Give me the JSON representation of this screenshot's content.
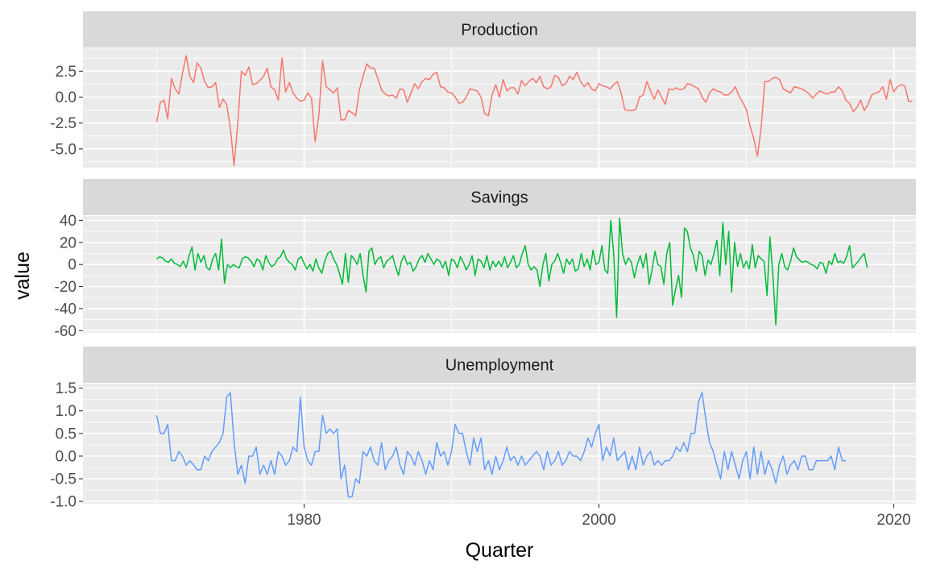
{
  "chart_data": {
    "type": "line",
    "xlabel": "Quarter",
    "ylabel": "value",
    "xlim": [
      1965.0,
      2021.5
    ],
    "x_ticks": [
      1980,
      2000,
      2020
    ],
    "x_tick_labels": [
      "1980",
      "2000",
      "2020"
    ],
    "x_start": 1970.0,
    "x_step": 0.25,
    "facets": [
      {
        "name": "Production",
        "color": "#F8766D",
        "ylim": [
          -6.8,
          4.7
        ],
        "y_ticks": [
          -5.0,
          -2.5,
          0.0,
          2.5
        ],
        "y_tick_labels": [
          "-5.0",
          "-2.5",
          "0.0",
          "2.5"
        ],
        "values": [
          -2.4,
          -0.5,
          -0.3,
          -2.1,
          1.8,
          0.8,
          0.3,
          2.3,
          4.0,
          2.0,
          1.4,
          3.3,
          2.8,
          1.5,
          0.9,
          1.0,
          1.4,
          -1.0,
          -0.2,
          -0.7,
          -3.0,
          -6.6,
          -2.5,
          2.5,
          2.1,
          2.9,
          1.2,
          1.3,
          1.6,
          2.0,
          2.8,
          1.0,
          0.7,
          -0.3,
          3.8,
          0.5,
          1.4,
          0.4,
          -0.1,
          -0.4,
          -0.3,
          0.4,
          -0.1,
          -4.3,
          -1.8,
          3.5,
          1.0,
          0.7,
          0.4,
          0.9,
          -2.2,
          -2.2,
          -1.3,
          -1.5,
          -1.8,
          0.7,
          2.0,
          3.2,
          2.8,
          2.8,
          1.8,
          0.7,
          0.3,
          0.1,
          0.2,
          -0.1,
          0.8,
          0.7,
          -0.5,
          0.4,
          1.3,
          0.8,
          1.5,
          1.8,
          1.7,
          2.2,
          2.4,
          1.0,
          0.9,
          0.5,
          0.4,
          0.0,
          -0.6,
          -0.5,
          0.0,
          0.8,
          0.7,
          0.6,
          0.0,
          -1.6,
          -1.8,
          0.2,
          1.2,
          0.0,
          1.7,
          0.6,
          0.9,
          0.9,
          0.3,
          1.6,
          1.1,
          1.5,
          1.8,
          1.4,
          2.0,
          1.0,
          0.8,
          1.0,
          2.1,
          1.9,
          1.1,
          1.3,
          2.0,
          1.7,
          2.4,
          1.5,
          1.0,
          1.4,
          0.8,
          0.6,
          1.3,
          1.1,
          1.0,
          0.8,
          1.2,
          1.5,
          0.4,
          -1.2,
          -1.3,
          -1.3,
          -1.2,
          0.0,
          0.2,
          1.5,
          0.6,
          -0.2,
          0.7,
          0.0,
          -0.7,
          0.8,
          0.7,
          0.9,
          0.7,
          0.8,
          1.3,
          1.2,
          1.0,
          0.8,
          0.0,
          -0.5,
          0.4,
          0.8,
          0.6,
          0.5,
          0.2,
          0.2,
          0.5,
          1.0,
          0.1,
          -0.5,
          -1.2,
          -2.8,
          -4.0,
          -5.7,
          -3.0,
          1.5,
          1.5,
          1.8,
          1.9,
          1.7,
          0.8,
          0.6,
          0.4,
          1.0,
          0.9,
          0.8,
          0.6,
          0.3,
          -0.1,
          0.3,
          0.6,
          0.4,
          0.3,
          0.5,
          0.5,
          1.0,
          0.6,
          -0.3,
          -0.6,
          -1.4,
          -1.0,
          -0.3,
          -1.3,
          -0.7,
          0.2,
          0.4,
          0.5,
          1.0,
          -0.2,
          1.7,
          0.5,
          1.0,
          1.2,
          1.1,
          -0.4,
          -0.4
        ]
      },
      {
        "name": "Savings",
        "color": "#00BA38",
        "ylim": [
          -62,
          44
        ],
        "y_ticks": [
          -60,
          -40,
          -20,
          0,
          20,
          40
        ],
        "y_tick_labels": [
          "-60",
          "-40",
          "-20",
          "0",
          "20",
          "40"
        ],
        "values": [
          5,
          7,
          6,
          3,
          2,
          5,
          1,
          0,
          -2,
          3,
          -3,
          8,
          16,
          -5,
          10,
          2,
          8,
          -3,
          -5,
          5,
          10,
          -5,
          23,
          -17,
          0,
          -3,
          0,
          -2,
          -3,
          5,
          7,
          6,
          3,
          -2,
          5,
          3,
          -5,
          8,
          2,
          -2,
          0,
          5,
          7,
          13,
          5,
          2,
          0,
          -5,
          5,
          7,
          1,
          -4,
          0,
          -6,
          5,
          -3,
          -8,
          3,
          10,
          12,
          5,
          0,
          -8,
          -18,
          10,
          -16,
          8,
          5,
          0,
          10,
          -10,
          -25,
          12,
          15,
          0,
          5,
          7,
          -3,
          3,
          5,
          8,
          -2,
          -10,
          3,
          8,
          0,
          2,
          -6,
          -2,
          5,
          8,
          2,
          10,
          5,
          0,
          5,
          3,
          -3,
          3,
          -10,
          5,
          3,
          -3,
          7,
          2,
          -5,
          0,
          8,
          -10,
          5,
          3,
          -3,
          8,
          -5,
          3,
          -2,
          3,
          -2,
          7,
          -3,
          2,
          8,
          -3,
          0,
          10,
          17,
          0,
          -5,
          -2,
          -5,
          -20,
          0,
          10,
          -15,
          0,
          3,
          10,
          2,
          -8,
          5,
          0,
          5,
          -6,
          -4,
          10,
          -2,
          5,
          -5,
          13,
          0,
          2,
          17,
          -5,
          -8,
          40,
          10,
          -48,
          42,
          10,
          0,
          6,
          2,
          -12,
          0,
          8,
          -3,
          10,
          -18,
          -5,
          12,
          0,
          -2,
          -18,
          10,
          20,
          -37,
          -22,
          -10,
          -30,
          33,
          30,
          15,
          8,
          -6,
          12,
          8,
          -10,
          4,
          0,
          10,
          22,
          -10,
          38,
          0,
          30,
          -25,
          20,
          -2,
          10,
          -3,
          3,
          -4,
          18,
          -3,
          8,
          5,
          3,
          -28,
          25,
          -10,
          -55,
          0,
          10,
          -2,
          -5,
          3,
          15,
          7,
          4,
          2,
          3,
          2,
          0,
          -1,
          -4,
          2,
          1,
          -8,
          3,
          0,
          10,
          2,
          3,
          1,
          7,
          17,
          -3,
          0,
          3,
          7,
          10,
          -3
        ],
        "x_start": 1970.0,
        "x_step": 0.2
      },
      {
        "name": "Unemployment",
        "color": "#619CFF",
        "ylim": [
          -1.05,
          1.6
        ],
        "y_ticks": [
          -1.0,
          -0.5,
          0.0,
          0.5,
          1.0,
          1.5
        ],
        "y_tick_labels": [
          "-1.0",
          "-0.5",
          "0.0",
          "0.5",
          "1.0",
          "1.5"
        ],
        "values": [
          0.9,
          0.5,
          0.5,
          0.7,
          -0.1,
          -0.1,
          0.1,
          0.0,
          -0.2,
          -0.1,
          -0.2,
          -0.3,
          -0.3,
          0.0,
          -0.1,
          0.1,
          0.2,
          0.3,
          0.5,
          1.3,
          1.4,
          0.3,
          -0.4,
          -0.2,
          -0.6,
          0.0,
          0.0,
          0.2,
          -0.4,
          -0.2,
          -0.4,
          -0.1,
          -0.4,
          0.1,
          0.0,
          -0.2,
          -0.1,
          0.2,
          0.1,
          1.3,
          0.2,
          -0.1,
          -0.2,
          0.1,
          0.1,
          0.9,
          0.5,
          0.6,
          0.5,
          0.6,
          -0.5,
          -0.2,
          -0.9,
          -0.9,
          -0.5,
          -0.6,
          0.1,
          0.0,
          0.2,
          -0.1,
          -0.2,
          0.3,
          -0.3,
          -0.1,
          0.0,
          0.2,
          -0.2,
          -0.4,
          0.1,
          0.0,
          -0.2,
          0.1,
          -0.1,
          -0.4,
          -0.1,
          -0.3,
          0.3,
          0.0,
          0.1,
          -0.2,
          0.1,
          0.7,
          0.5,
          0.5,
          0.1,
          -0.2,
          0.4,
          0.1,
          0.4,
          -0.3,
          -0.1,
          -0.4,
          0.0,
          -0.3,
          -0.1,
          0.2,
          -0.1,
          0.0,
          -0.2,
          0.0,
          -0.2,
          -0.1,
          0.0,
          0.1,
          0.0,
          -0.3,
          0.1,
          -0.2,
          -0.1,
          0.1,
          -0.2,
          -0.1,
          0.1,
          0.0,
          0.0,
          -0.1,
          0.1,
          0.4,
          0.2,
          0.5,
          0.7,
          -0.1,
          0.2,
          0.0,
          0.4,
          -0.1,
          0.0,
          0.1,
          -0.3,
          0.0,
          -0.3,
          0.2,
          -0.2,
          0.0,
          0.1,
          -0.2,
          -0.1,
          -0.2,
          -0.1,
          -0.1,
          0.0,
          0.2,
          0.1,
          0.3,
          0.1,
          0.5,
          0.5,
          1.2,
          1.4,
          0.8,
          0.3,
          0.1,
          -0.2,
          -0.5,
          0.1,
          -0.3,
          0.1,
          -0.2,
          -0.5,
          -0.1,
          0.1,
          -0.5,
          0.2,
          -0.4,
          0.1,
          -0.4,
          -0.1,
          -0.3,
          -0.6,
          -0.2,
          0.0,
          -0.4,
          -0.2,
          -0.1,
          -0.3,
          0.0,
          0.0,
          -0.3,
          -0.3,
          -0.1,
          -0.1,
          -0.1,
          -0.1,
          0.0,
          -0.3,
          0.2,
          -0.1,
          -0.1
        ],
        "x_start": 1970.0,
        "x_step": 0.25
      }
    ]
  }
}
